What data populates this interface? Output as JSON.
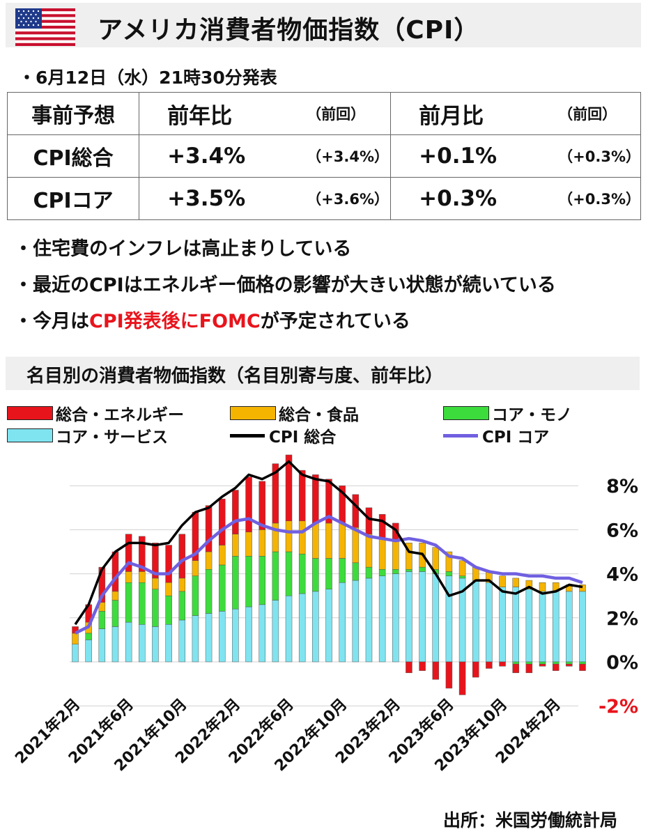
{
  "header": {
    "title": "アメリカ消費者物価指数（CPI）",
    "flag_icon": "us-flag-icon"
  },
  "announcement": "・6月12日（水）21時30分発表",
  "forecast_table": {
    "header": [
      "事前予想",
      "前年比",
      "（前回）",
      "前月比",
      "（前回）"
    ],
    "rows": [
      {
        "label": "CPI総合",
        "yoy": "+3.4%",
        "yoy_prev": "（+3.4%）",
        "mom": "+0.1%",
        "mom_prev": "（+0.3%）"
      },
      {
        "label": "CPIコア",
        "yoy": "+3.5%",
        "yoy_prev": "（+3.6%）",
        "mom": "+0.3%",
        "mom_prev": "（+0.3%）"
      }
    ]
  },
  "bullets": {
    "b1": "・住宅費のインフレは高止まりしている",
    "b2": "・最近のCPIはエネルギー価格の影響が大きい状態が続いている",
    "b3_pre": "・今月は",
    "b3_red": "CPI発表後にFOMC",
    "b3_post": "が予定されている"
  },
  "chart_title": "名目別の消費者物価指数（名目別寄与度、前年比）",
  "legend": {
    "energy": "総合・エネルギー",
    "food": "総合・食品",
    "goods": "コア・モノ",
    "services": "コア・サービス",
    "cpi": "CPI 総合",
    "core": "CPI コア"
  },
  "colors": {
    "energy": "#e8141c",
    "food": "#f5b400",
    "goods": "#3ddc3d",
    "services": "#7fe4f0",
    "cpi": "#000000",
    "core": "#7060e0",
    "negative_tick": "#e8141c"
  },
  "chart_data": {
    "type": "bar",
    "stacked": true,
    "ytick_labels": [
      "-2%",
      "0%",
      "2%",
      "4%",
      "6%",
      "8%"
    ],
    "yticks": [
      -2,
      0,
      2,
      4,
      6,
      8
    ],
    "ylim": [
      -2.2,
      9.2
    ],
    "y_axis_side": "right",
    "grid": true,
    "xtick_labels": [
      "2021年2月",
      "2021年6月",
      "2021年10月",
      "2022年2月",
      "2022年6月",
      "2022年10月",
      "2023年2月",
      "2023年6月",
      "2023年10月",
      "2024年2月"
    ],
    "xtick_index": [
      0,
      4,
      8,
      12,
      16,
      20,
      24,
      28,
      32,
      36
    ],
    "categories": [
      "2021-02",
      "2021-03",
      "2021-04",
      "2021-05",
      "2021-06",
      "2021-07",
      "2021-08",
      "2021-09",
      "2021-10",
      "2021-11",
      "2021-12",
      "2022-01",
      "2022-02",
      "2022-03",
      "2022-04",
      "2022-05",
      "2022-06",
      "2022-07",
      "2022-08",
      "2022-09",
      "2022-10",
      "2022-11",
      "2022-12",
      "2023-01",
      "2023-02",
      "2023-03",
      "2023-04",
      "2023-05",
      "2023-06",
      "2023-07",
      "2023-08",
      "2023-09",
      "2023-10",
      "2023-11",
      "2023-12",
      "2024-01",
      "2024-02",
      "2024-03",
      "2024-04"
    ],
    "series": [
      {
        "name": "コア・サービス",
        "values": [
          0.8,
          1.0,
          1.5,
          1.6,
          1.8,
          1.7,
          1.6,
          1.7,
          1.9,
          2.1,
          2.2,
          2.3,
          2.4,
          2.5,
          2.6,
          2.8,
          3.0,
          3.1,
          3.2,
          3.3,
          3.6,
          3.7,
          3.8,
          3.9,
          4.0,
          4.1,
          4.1,
          4.0,
          3.9,
          3.8,
          3.7,
          3.6,
          3.4,
          3.4,
          3.3,
          3.2,
          3.2,
          3.2,
          3.2
        ]
      },
      {
        "name": "コア・モノ",
        "values": [
          0.0,
          0.3,
          0.8,
          1.2,
          1.8,
          1.9,
          1.7,
          1.3,
          1.3,
          1.8,
          2.0,
          2.1,
          2.4,
          2.3,
          2.2,
          2.2,
          2.0,
          1.8,
          1.5,
          1.4,
          1.1,
          0.8,
          0.5,
          0.3,
          0.2,
          0.1,
          0.2,
          0.2,
          0.2,
          0.1,
          0.0,
          0.0,
          0.0,
          -0.1,
          -0.1,
          -0.1,
          -0.1,
          -0.1,
          -0.1
        ]
      },
      {
        "name": "総合・食品",
        "values": [
          0.5,
          0.5,
          0.4,
          0.4,
          0.5,
          0.5,
          0.5,
          0.6,
          0.6,
          0.7,
          0.8,
          0.9,
          1.0,
          1.1,
          1.2,
          1.3,
          1.4,
          1.5,
          1.6,
          1.6,
          1.6,
          1.6,
          1.5,
          1.4,
          1.3,
          1.2,
          1.1,
          1.0,
          0.9,
          0.7,
          0.6,
          0.5,
          0.5,
          0.4,
          0.4,
          0.4,
          0.4,
          0.3,
          0.3
        ]
      },
      {
        "name": "総合・エネルギー",
        "values": [
          0.3,
          0.8,
          1.6,
          1.8,
          1.7,
          1.6,
          1.6,
          1.7,
          2.0,
          2.2,
          2.1,
          2.1,
          2.0,
          2.5,
          2.2,
          2.7,
          3.0,
          2.3,
          2.2,
          2.0,
          1.7,
          1.5,
          1.2,
          1.1,
          0.8,
          -0.5,
          -0.4,
          -0.8,
          -1.2,
          -1.5,
          -0.7,
          -0.3,
          -0.2,
          -0.4,
          -0.4,
          -0.1,
          -0.3,
          -0.1,
          -0.3
        ]
      },
      {
        "name": "CPI 総合",
        "type": "line",
        "values": [
          1.7,
          2.6,
          4.2,
          5.0,
          5.4,
          5.4,
          5.3,
          5.4,
          6.2,
          6.8,
          7.0,
          7.5,
          7.9,
          8.5,
          8.3,
          8.6,
          9.1,
          8.5,
          8.3,
          8.2,
          7.7,
          7.1,
          6.5,
          6.4,
          6.0,
          5.0,
          4.9,
          4.0,
          3.0,
          3.2,
          3.7,
          3.7,
          3.2,
          3.1,
          3.4,
          3.1,
          3.2,
          3.5,
          3.4
        ]
      },
      {
        "name": "CPI コア",
        "type": "line",
        "values": [
          1.3,
          1.6,
          3.0,
          3.8,
          4.5,
          4.3,
          4.0,
          4.0,
          4.6,
          4.9,
          5.5,
          6.0,
          6.4,
          6.5,
          6.2,
          6.0,
          5.9,
          5.9,
          6.3,
          6.6,
          6.3,
          6.0,
          5.7,
          5.6,
          5.5,
          5.6,
          5.5,
          5.3,
          4.8,
          4.7,
          4.3,
          4.1,
          4.0,
          4.0,
          3.9,
          3.9,
          3.8,
          3.8,
          3.6
        ]
      }
    ]
  },
  "source": "出所：米国労働統計局"
}
